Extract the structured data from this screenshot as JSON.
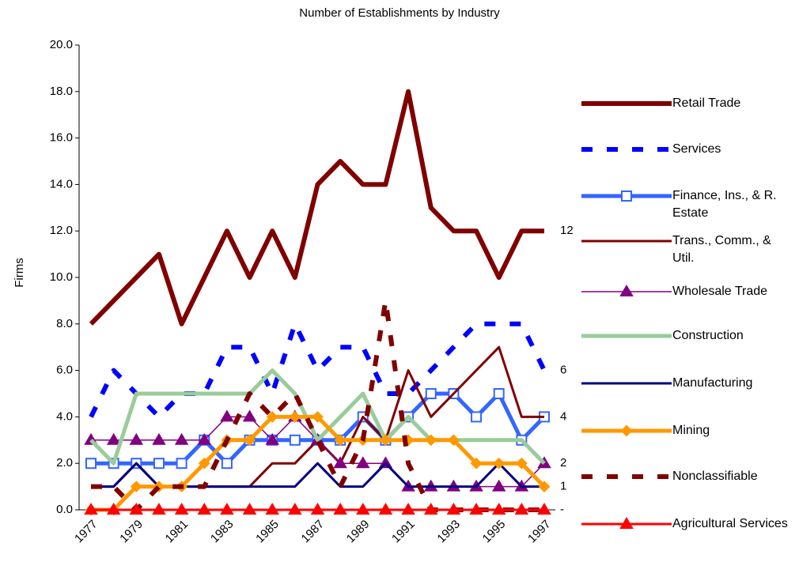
{
  "chart_data": {
    "type": "line",
    "title": "Number of Establishments by Industry",
    "y_label": "Firms",
    "categories": [
      "1977",
      null,
      "1979",
      null,
      "1981",
      null,
      "1983",
      null,
      "1985",
      null,
      "1987",
      null,
      "1989",
      null,
      "1991",
      null,
      "1993",
      null,
      "1995",
      null,
      "1997"
    ],
    "ylim": [
      0,
      20
    ],
    "yticks": [
      {
        "value": 0,
        "label": "0.0"
      },
      {
        "value": 2,
        "label": "2.0"
      },
      {
        "value": 4,
        "label": "4.0"
      },
      {
        "value": 6,
        "label": "6.0"
      },
      {
        "value": 8,
        "label": "8.0"
      },
      {
        "value": 10,
        "label": "10.0"
      },
      {
        "value": 12,
        "label": "12.0"
      },
      {
        "value": 14,
        "label": "14.0"
      },
      {
        "value": 16,
        "label": "16.0"
      },
      {
        "value": 18,
        "label": "18.0"
      },
      {
        "value": 20,
        "label": "20.0"
      }
    ],
    "series": [
      {
        "name": "Retail Trade",
        "color": "#800000",
        "width": 6,
        "dash": "none",
        "marker": "none",
        "values": [
          8,
          9,
          10,
          11,
          8,
          10,
          12,
          10,
          12,
          10,
          14,
          15,
          14,
          14,
          18,
          13,
          12,
          12,
          10,
          12,
          12
        ],
        "value_labels": [
          null,
          null,
          null,
          null,
          null,
          null,
          null,
          null,
          null,
          null,
          null,
          null,
          null,
          null,
          null,
          null,
          null,
          null,
          null,
          null,
          "12"
        ]
      },
      {
        "name": "Services",
        "color": "#0000ff",
        "width": 6,
        "dash": "14 18",
        "marker": "none",
        "values": [
          4,
          6,
          5,
          4,
          5,
          5,
          7,
          7,
          5,
          8,
          6,
          7,
          7,
          5,
          5,
          6,
          7,
          8,
          8,
          8,
          6
        ],
        "value_labels": [
          null,
          null,
          null,
          null,
          null,
          null,
          null,
          null,
          null,
          null,
          null,
          null,
          null,
          null,
          null,
          null,
          null,
          null,
          null,
          null,
          "6"
        ]
      },
      {
        "name": "Finance, Ins., & R. Estate",
        "color": "#3366ff",
        "width": 5,
        "dash": "none",
        "marker": "square",
        "values": [
          2,
          2,
          2,
          2,
          2,
          3,
          2,
          3,
          3,
          3,
          3,
          3,
          4,
          3,
          4,
          5,
          5,
          4,
          5,
          3,
          4
        ],
        "value_labels": [
          null,
          null,
          null,
          null,
          null,
          null,
          null,
          null,
          null,
          null,
          null,
          null,
          null,
          null,
          null,
          null,
          null,
          null,
          null,
          null,
          "4"
        ]
      },
      {
        "name": "Trans., Comm., & Util.",
        "color": "#800000",
        "width": 3,
        "dash": "none",
        "marker": "none",
        "values": [
          1,
          1,
          2,
          1,
          1,
          1,
          1,
          1,
          2,
          2,
          3,
          2,
          4,
          3,
          6,
          4,
          5,
          6,
          7,
          4,
          4
        ]
      },
      {
        "name": "Wholesale Trade",
        "color": "#800080",
        "width": 1.5,
        "dash": "none",
        "marker": "triangle",
        "values": [
          3,
          3,
          3,
          3,
          3,
          3,
          4,
          4,
          3,
          4,
          3,
          2,
          2,
          2,
          1,
          1,
          1,
          1,
          1,
          1,
          2
        ],
        "value_labels": [
          null,
          null,
          null,
          null,
          null,
          null,
          null,
          null,
          null,
          null,
          null,
          null,
          null,
          null,
          null,
          null,
          null,
          null,
          null,
          null,
          "2"
        ]
      },
      {
        "name": "Construction",
        "color": "#99cc99",
        "width": 5,
        "dash": "none",
        "marker": "none",
        "values": [
          3,
          2,
          5,
          5,
          5,
          5,
          5,
          5,
          6,
          5,
          3,
          4,
          5,
          3,
          4,
          3,
          3,
          3,
          3,
          3,
          2
        ]
      },
      {
        "name": "Manufacturing",
        "color": "#000080",
        "width": 3,
        "dash": "none",
        "marker": "none",
        "values": [
          1,
          1,
          2,
          1,
          1,
          1,
          1,
          1,
          1,
          1,
          2,
          1,
          1,
          2,
          1,
          1,
          1,
          1,
          2,
          1,
          1
        ]
      },
      {
        "name": "Mining",
        "color": "#ff9900",
        "width": 5,
        "dash": "none",
        "marker": "diamond",
        "values": [
          0,
          0,
          1,
          1,
          1,
          2,
          3,
          3,
          4,
          4,
          4,
          3,
          3,
          3,
          3,
          3,
          3,
          2,
          2,
          2,
          1
        ],
        "value_labels": [
          null,
          null,
          null,
          null,
          null,
          null,
          null,
          null,
          null,
          null,
          null,
          null,
          null,
          null,
          null,
          null,
          null,
          null,
          null,
          null,
          "1"
        ]
      },
      {
        "name": "Nonclassifiable",
        "color": "#800000",
        "width": 6,
        "dash": "14 18",
        "marker": "none",
        "values": [
          1,
          1,
          0,
          1,
          1,
          1,
          3,
          5,
          4,
          5,
          3,
          1,
          3,
          9,
          2,
          0,
          0,
          0,
          0,
          0,
          0
        ]
      },
      {
        "name": "Agricultural Services",
        "color": "#ff0000",
        "width": 3,
        "dash": "none",
        "marker": "triangle",
        "values": [
          0,
          0,
          0,
          0,
          0,
          0,
          0,
          0,
          0,
          0,
          0,
          0,
          0,
          0,
          0,
          0,
          0,
          0,
          0,
          0,
          0
        ],
        "value_labels": [
          null,
          null,
          null,
          null,
          null,
          null,
          null,
          null,
          null,
          null,
          null,
          null,
          null,
          null,
          null,
          null,
          null,
          null,
          null,
          null,
          "-"
        ]
      }
    ]
  }
}
